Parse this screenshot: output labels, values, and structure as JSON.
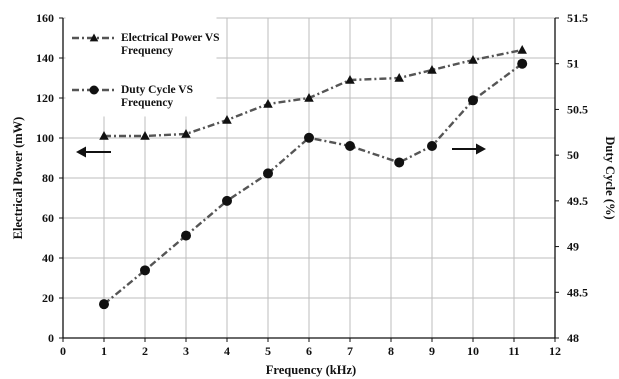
{
  "chart_data": {
    "type": "line",
    "xlabel": "Frequency (kHz)",
    "ylabel": "Electrical Power (mW)",
    "y2label": "Duty Cycle (%)",
    "xlim": [
      0,
      12
    ],
    "ylim": [
      0,
      160
    ],
    "y2lim": [
      48,
      51.5
    ],
    "xticks": [
      "0",
      "1",
      "2",
      "3",
      "4",
      "5",
      "6",
      "7",
      "8",
      "9",
      "10",
      "11",
      "12"
    ],
    "yticks": [
      "0",
      "20",
      "40",
      "60",
      "80",
      "100",
      "120",
      "140",
      "160"
    ],
    "y2ticks": [
      "48",
      "48.5",
      "49",
      "49.5",
      "50",
      "50.5",
      "51",
      "51.5"
    ],
    "grid": true,
    "legend_position": "top-left",
    "series": [
      {
        "name": "Electrical Power VS Frequency",
        "marker": "triangle",
        "axis": "left",
        "x": [
          1,
          2,
          3,
          4,
          5,
          6,
          7,
          8.2,
          9,
          10,
          11.2
        ],
        "y": [
          101,
          101,
          102,
          109,
          117,
          120,
          129,
          130,
          134,
          139,
          144
        ]
      },
      {
        "name": "Duty Cycle VS Frequency",
        "marker": "circle",
        "axis": "right",
        "x": [
          1,
          2,
          3,
          4,
          5,
          6,
          7,
          8.2,
          9,
          10,
          11.2
        ],
        "y": [
          48.37,
          48.74,
          49.12,
          49.5,
          49.8,
          50.19,
          50.1,
          49.92,
          50.1,
          50.6,
          51.0
        ]
      }
    ],
    "annotations": [
      {
        "type": "arrow",
        "direction": "left",
        "meaning": "left axis series"
      },
      {
        "type": "arrow",
        "direction": "right",
        "meaning": "right axis series"
      }
    ]
  }
}
